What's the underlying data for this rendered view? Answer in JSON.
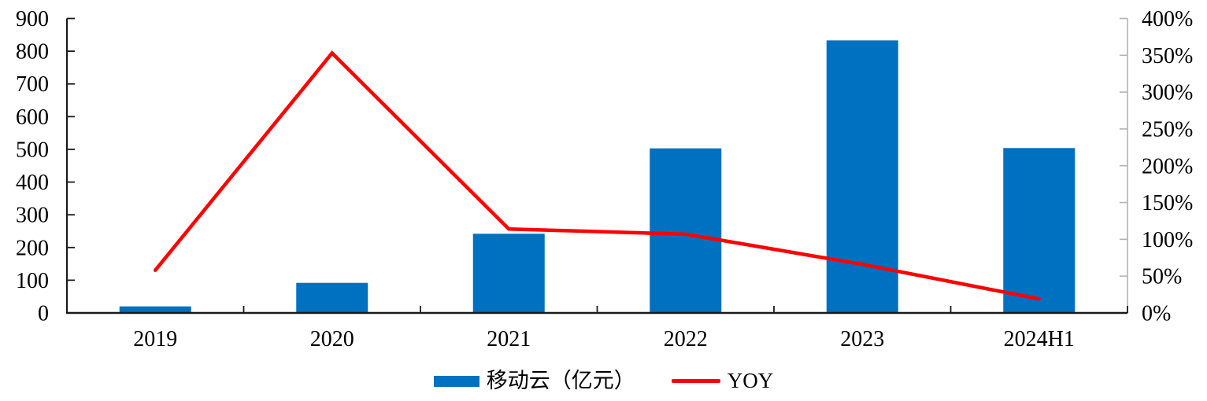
{
  "chart_data": {
    "type": "combo_bar_line",
    "title": "",
    "categories": [
      "2019",
      "2020",
      "2021",
      "2022",
      "2023",
      "2024H1"
    ],
    "series": [
      {
        "name": "移动云（亿元）",
        "type": "bar",
        "axis": "left",
        "values": [
          20,
          92,
          242,
          503,
          833,
          504
        ],
        "color": "#0070C0"
      },
      {
        "name": "YOY",
        "type": "line",
        "axis": "right",
        "values": [
          58,
          353,
          114,
          107,
          66,
          19
        ],
        "unit": "%",
        "color": "#FF0000"
      }
    ],
    "left_axis": {
      "min": 0,
      "max": 900,
      "step": 100,
      "tick_labels": [
        "0",
        "100",
        "200",
        "300",
        "400",
        "500",
        "600",
        "700",
        "800",
        "900"
      ]
    },
    "right_axis": {
      "min": 0,
      "max": 400,
      "step": 50,
      "tick_labels": [
        "0%",
        "50%",
        "100%",
        "150%",
        "200%",
        "250%",
        "300%",
        "350%",
        "400%"
      ]
    },
    "grid": false,
    "legend_position": "bottom",
    "colors": {
      "bar": "#0070C0",
      "line": "#FF0000",
      "axis": "#1a1a1a",
      "right_axis": "#b3b3b3",
      "text": "#000000"
    }
  }
}
